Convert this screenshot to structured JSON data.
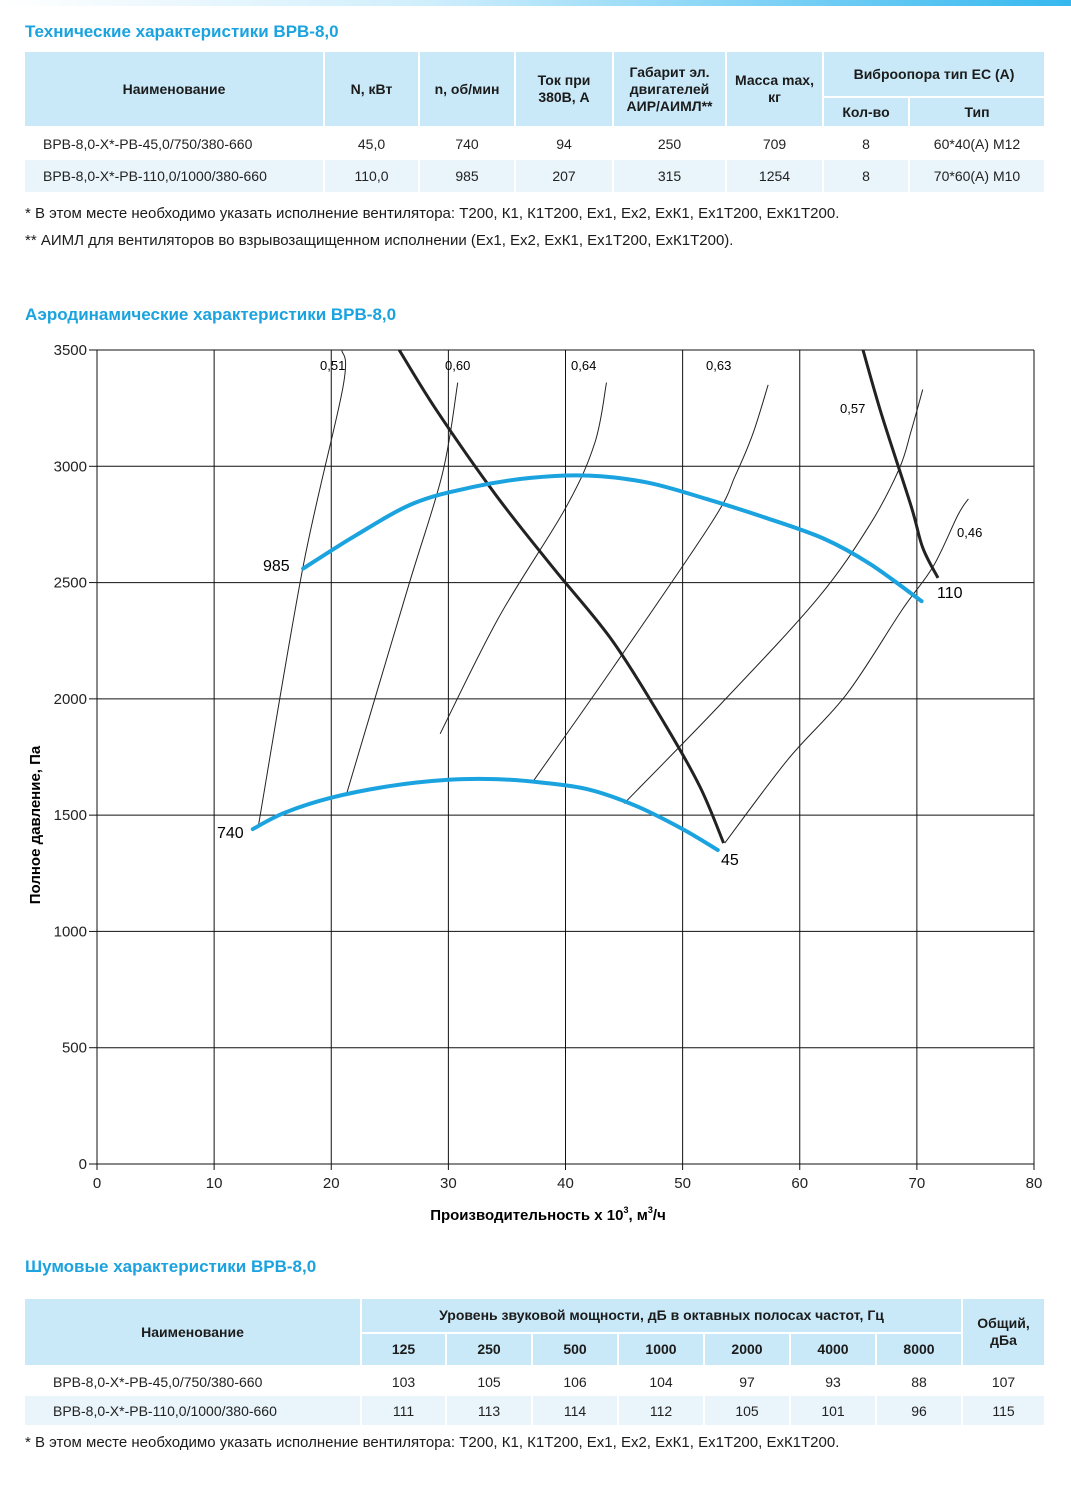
{
  "tech": {
    "title": "Технические характеристики ВРВ-8,0",
    "headers": {
      "name": "Наименование",
      "power": "N, кВт",
      "speed": "n, об/мин",
      "current": "Ток при 380В, А",
      "motor": "Габарит эл. двигателей АИР/АИМЛ**",
      "mass": "Масса max, кг",
      "vibro": "Виброопора тип ЕС (А)",
      "qty": "Кол-во",
      "type": "Тип"
    },
    "rows": [
      {
        "name": "ВРВ-8,0-Х*-РВ-45,0/750/380-660",
        "power": "45,0",
        "speed": "740",
        "current": "94",
        "motor": "250",
        "mass": "709",
        "qty": "8",
        "type": "60*40(А) М12"
      },
      {
        "name": "ВРВ-8,0-Х*-РВ-110,0/1000/380-660",
        "power": "110,0",
        "speed": "985",
        "current": "207",
        "motor": "315",
        "mass": "1254",
        "qty": "8",
        "type": "70*60(А) М10"
      }
    ],
    "note1": "* В этом месте необходимо указать исполнение вентилятора: Т200, К1, К1Т200, Ех1, Ех2, ЕхК1, Ех1Т200, ЕхК1Т200.",
    "note2": "** АИМЛ для вентиляторов во взрывозащищенном исполнении (Ех1, Ех2, ЕхК1, Ех1Т200, ЕхК1Т200)."
  },
  "aero": {
    "title": "Аэродинамические характеристики ВРВ-8,0"
  },
  "chart_data": {
    "type": "line",
    "xlabel": "Производительность х 10",
    "xlabel_sup": "3",
    "xlabel_unit": ", м",
    "xlabel_unit_sup": "3",
    "xlabel_tail": "/ч",
    "ylabel": "Полное давление, Па",
    "xlim": [
      0,
      80
    ],
    "ylim": [
      0,
      3500
    ],
    "xticks": [
      0,
      10,
      20,
      30,
      40,
      50,
      60,
      70,
      80
    ],
    "yticks": [
      0,
      500,
      1000,
      1500,
      2000,
      2500,
      3000,
      3500
    ],
    "grid": true,
    "speed_curves": [
      {
        "name": "985",
        "color": "#1aa3df",
        "points": [
          [
            17.6,
            2560
          ],
          [
            22,
            2700
          ],
          [
            27,
            2840
          ],
          [
            32,
            2910
          ],
          [
            37,
            2950
          ],
          [
            42,
            2960
          ],
          [
            47,
            2930
          ],
          [
            52,
            2860
          ],
          [
            57,
            2780
          ],
          [
            62,
            2690
          ],
          [
            66,
            2580
          ],
          [
            70.4,
            2420
          ]
        ]
      },
      {
        "name": "740",
        "color": "#1aa3df",
        "points": [
          [
            13.3,
            1440
          ],
          [
            16,
            1510
          ],
          [
            20,
            1575
          ],
          [
            25,
            1625
          ],
          [
            30,
            1652
          ],
          [
            34,
            1655
          ],
          [
            38,
            1640
          ],
          [
            42,
            1610
          ],
          [
            46,
            1540
          ],
          [
            50,
            1440
          ],
          [
            53,
            1350
          ]
        ]
      }
    ],
    "power_curves": [
      {
        "name": "45",
        "color": "#222222",
        "points": [
          [
            25.8,
            3500
          ],
          [
            29,
            3240
          ],
          [
            34,
            2880
          ],
          [
            39,
            2560
          ],
          [
            44,
            2250
          ],
          [
            48.5,
            1890
          ],
          [
            51.5,
            1620
          ],
          [
            53.5,
            1380
          ]
        ]
      },
      {
        "name": "110",
        "color": "#222222",
        "points": [
          [
            65.4,
            3500
          ],
          [
            67,
            3220
          ],
          [
            69.5,
            2830
          ],
          [
            70.5,
            2650
          ],
          [
            71.8,
            2520
          ]
        ]
      }
    ],
    "efficiency_lines": [
      {
        "name": "0,51",
        "points": [
          [
            13.8,
            1460
          ],
          [
            17.6,
            2570
          ],
          [
            21,
            3340
          ],
          [
            20.9,
            3500
          ]
        ]
      },
      {
        "name": "0,60",
        "points": [
          [
            21.3,
            1590
          ],
          [
            26.5,
            2470
          ],
          [
            29.5,
            2970
          ],
          [
            30.8,
            3360
          ]
        ]
      },
      {
        "name": "0,64",
        "points": [
          [
            29.3,
            1850
          ],
          [
            34.3,
            2350
          ],
          [
            40,
            2820
          ],
          [
            42.5,
            3100
          ],
          [
            43.5,
            3360
          ]
        ]
      },
      {
        "name": "0,63",
        "points": [
          [
            37.3,
            1650
          ],
          [
            44,
            2130
          ],
          [
            52.5,
            2760
          ],
          [
            54.5,
            2960
          ],
          [
            56,
            3140
          ],
          [
            57.3,
            3350
          ]
        ]
      },
      {
        "name": "0,57",
        "points": [
          [
            45,
            1550
          ],
          [
            53.3,
            1980
          ],
          [
            61.5,
            2430
          ],
          [
            66,
            2750
          ],
          [
            68.5,
            2990
          ],
          [
            69.5,
            3150
          ],
          [
            70.5,
            3330
          ]
        ]
      },
      {
        "name": "0,46",
        "points": [
          [
            53.6,
            1380
          ],
          [
            59,
            1740
          ],
          [
            64,
            2020
          ],
          [
            68.7,
            2380
          ],
          [
            71.4,
            2570
          ],
          [
            73.5,
            2790
          ],
          [
            74.4,
            2860
          ]
        ]
      }
    ],
    "annotations": {
      "s985": "985",
      "s740": "740",
      "p45": "45",
      "p110": "110",
      "e051": "0,51",
      "e060": "0,60",
      "e064": "0,64",
      "e063": "0,63",
      "e057": "0,57",
      "e046": "0,46"
    }
  },
  "noise": {
    "title": "Шумовые характеристики ВРВ-8,0",
    "headers": {
      "name": "Наименование",
      "band": "Уровень звуковой мощности, дБ в октавных полосах частот, Гц",
      "total": "Общий, дБа",
      "freqs": [
        "125",
        "250",
        "500",
        "1000",
        "2000",
        "4000",
        "8000"
      ]
    },
    "rows": [
      {
        "name": "ВРВ-8,0-Х*-РВ-45,0/750/380-660",
        "values": [
          "103",
          "105",
          "106",
          "104",
          "97",
          "93",
          "88"
        ],
        "total": "107"
      },
      {
        "name": "ВРВ-8,0-Х*-РВ-110,0/1000/380-660",
        "values": [
          "111",
          "113",
          "114",
          "112",
          "105",
          "101",
          "96"
        ],
        "total": "115"
      }
    ],
    "note": "* В этом месте необходимо указать исполнение вентилятора: Т200, К1, К1Т200, Ех1, Ех2, ЕхК1, Ех1Т200, ЕхК1Т200."
  }
}
